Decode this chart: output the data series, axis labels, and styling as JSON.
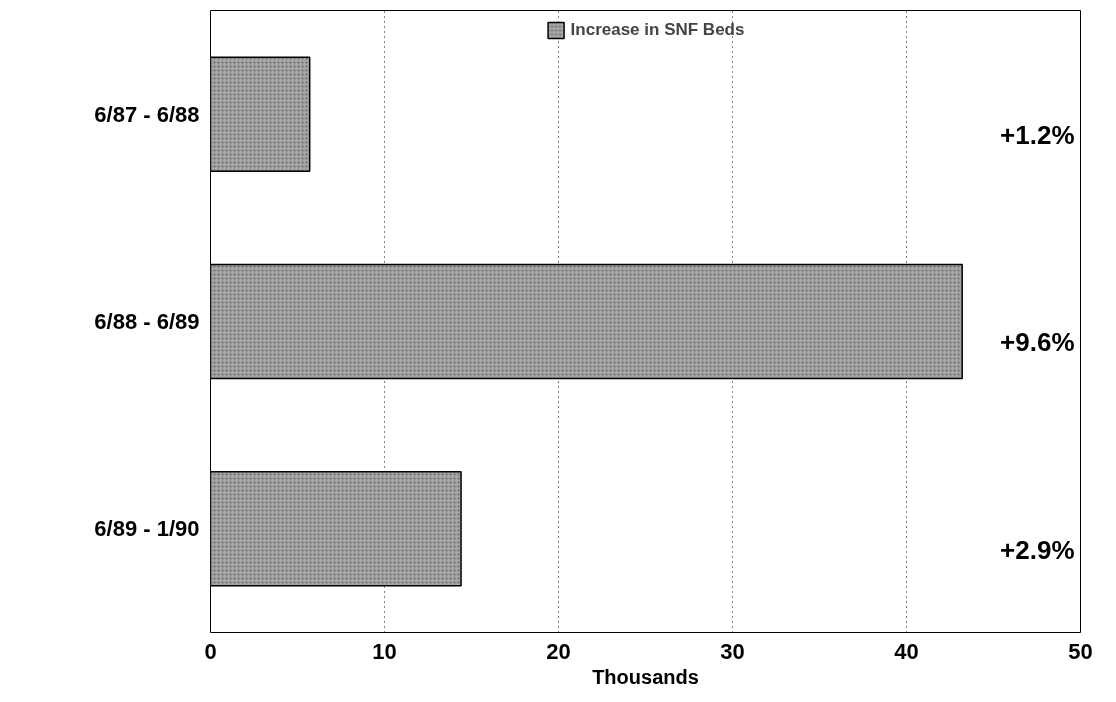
{
  "chart_data": {
    "type": "bar",
    "orientation": "horizontal",
    "xlabel": "Thousands",
    "categories": [
      "6/87 - 6/88",
      "6/88 - 6/89",
      "6/89 - 1/90"
    ],
    "series": [
      {
        "name": "Increase in SNF Beds",
        "color": "#a6a6a6",
        "values": [
          5.7,
          43.2,
          14.4
        ]
      }
    ],
    "xlim": [
      0,
      50
    ],
    "xticks": [
      0,
      10,
      20,
      30,
      40,
      50
    ],
    "grid": "x",
    "legend": "top",
    "annotations": [
      "+1.2%",
      "+9.6%",
      "+2.9%"
    ]
  }
}
